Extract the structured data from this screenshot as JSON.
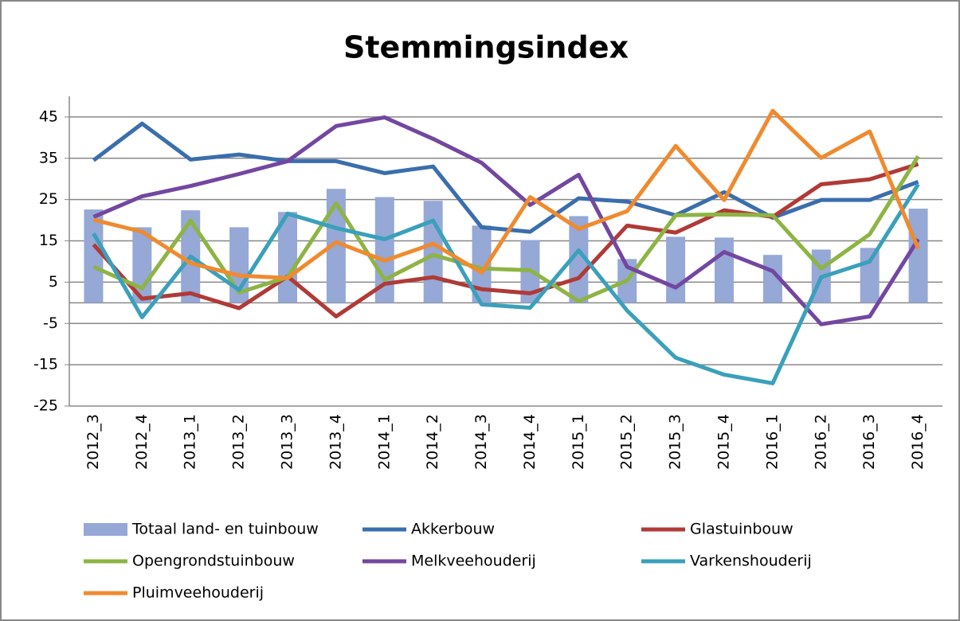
{
  "chart_data": {
    "type": "bar-line",
    "title": "Stemmingsindex",
    "categories": [
      "2012_3",
      "2012_4",
      "2013_1",
      "2013_2",
      "2013_3",
      "2013_4",
      "2014_1",
      "2014_2",
      "2014_3",
      "2014_4",
      "2015_1",
      "2015_2",
      "2015_3",
      "2015_4",
      "2016_1",
      "2016_2",
      "2016_3",
      "2016_4"
    ],
    "series": [
      {
        "name": "Totaal land- en tuinbouw",
        "kind": "bar",
        "color": "#95a8d6",
        "values": [
          22.6,
          18.3,
          22.4,
          18.3,
          22,
          27.6,
          25.6,
          24.7,
          18.7,
          15.2,
          21,
          10.6,
          16,
          15.8,
          11.6,
          12.9,
          13.3,
          22.8
        ]
      },
      {
        "name": "Akkerbouw",
        "kind": "line",
        "color": "#3a6ead",
        "values": [
          34.5,
          43.4,
          34.7,
          35.9,
          34.3,
          34.3,
          31.4,
          33,
          18.3,
          17.2,
          25.3,
          24.5,
          21.2,
          26.8,
          20.6,
          24.9,
          24.9,
          29.3
        ]
      },
      {
        "name": "Glastuinbouw",
        "kind": "line",
        "color": "#b03a37",
        "values": [
          14.1,
          1,
          2.3,
          -1.3,
          6.4,
          -3.3,
          4.6,
          6.2,
          3.3,
          2.3,
          6,
          18.7,
          17,
          22.4,
          20.8,
          28.7,
          29.9,
          33.6
        ]
      },
      {
        "name": "Opengrondstuinbouw",
        "kind": "line",
        "color": "#8db444",
        "values": [
          8.7,
          3.5,
          19.9,
          2.5,
          6.2,
          24.1,
          5.6,
          11.6,
          8.3,
          7.9,
          0.4,
          5.4,
          21.2,
          21.4,
          21.2,
          8.3,
          16.6,
          35.5
        ]
      },
      {
        "name": "Melkveehouderij",
        "kind": "line",
        "color": "#7347a0",
        "values": [
          20.8,
          25.8,
          28.3,
          31.2,
          34.3,
          42.8,
          44.9,
          39.7,
          33.9,
          23.7,
          31,
          8.7,
          3.7,
          12.3,
          7.7,
          -5.2,
          -3.3,
          15.4
        ]
      },
      {
        "name": "Varkenshouderij",
        "kind": "line",
        "color": "#3aa0bb",
        "values": [
          16.8,
          -3.5,
          11.2,
          3.1,
          21.6,
          18.1,
          15.4,
          19.9,
          -0.4,
          -1.2,
          12.7,
          -1.9,
          -13.3,
          -17.4,
          -19.5,
          6.2,
          10,
          28.7
        ]
      },
      {
        "name": "Pluimveehouderij",
        "kind": "line",
        "color": "#f08a2e",
        "values": [
          20.1,
          17.2,
          9.6,
          6.6,
          6,
          14.7,
          10.2,
          14.3,
          7.3,
          25.6,
          17.9,
          22.2,
          38,
          24.9,
          46.5,
          35.1,
          41.5,
          13.1
        ]
      }
    ],
    "ylim": [
      -25,
      50
    ],
    "yticks": [
      -25,
      -15,
      -5,
      5,
      15,
      25,
      35,
      45
    ],
    "grid": true
  }
}
